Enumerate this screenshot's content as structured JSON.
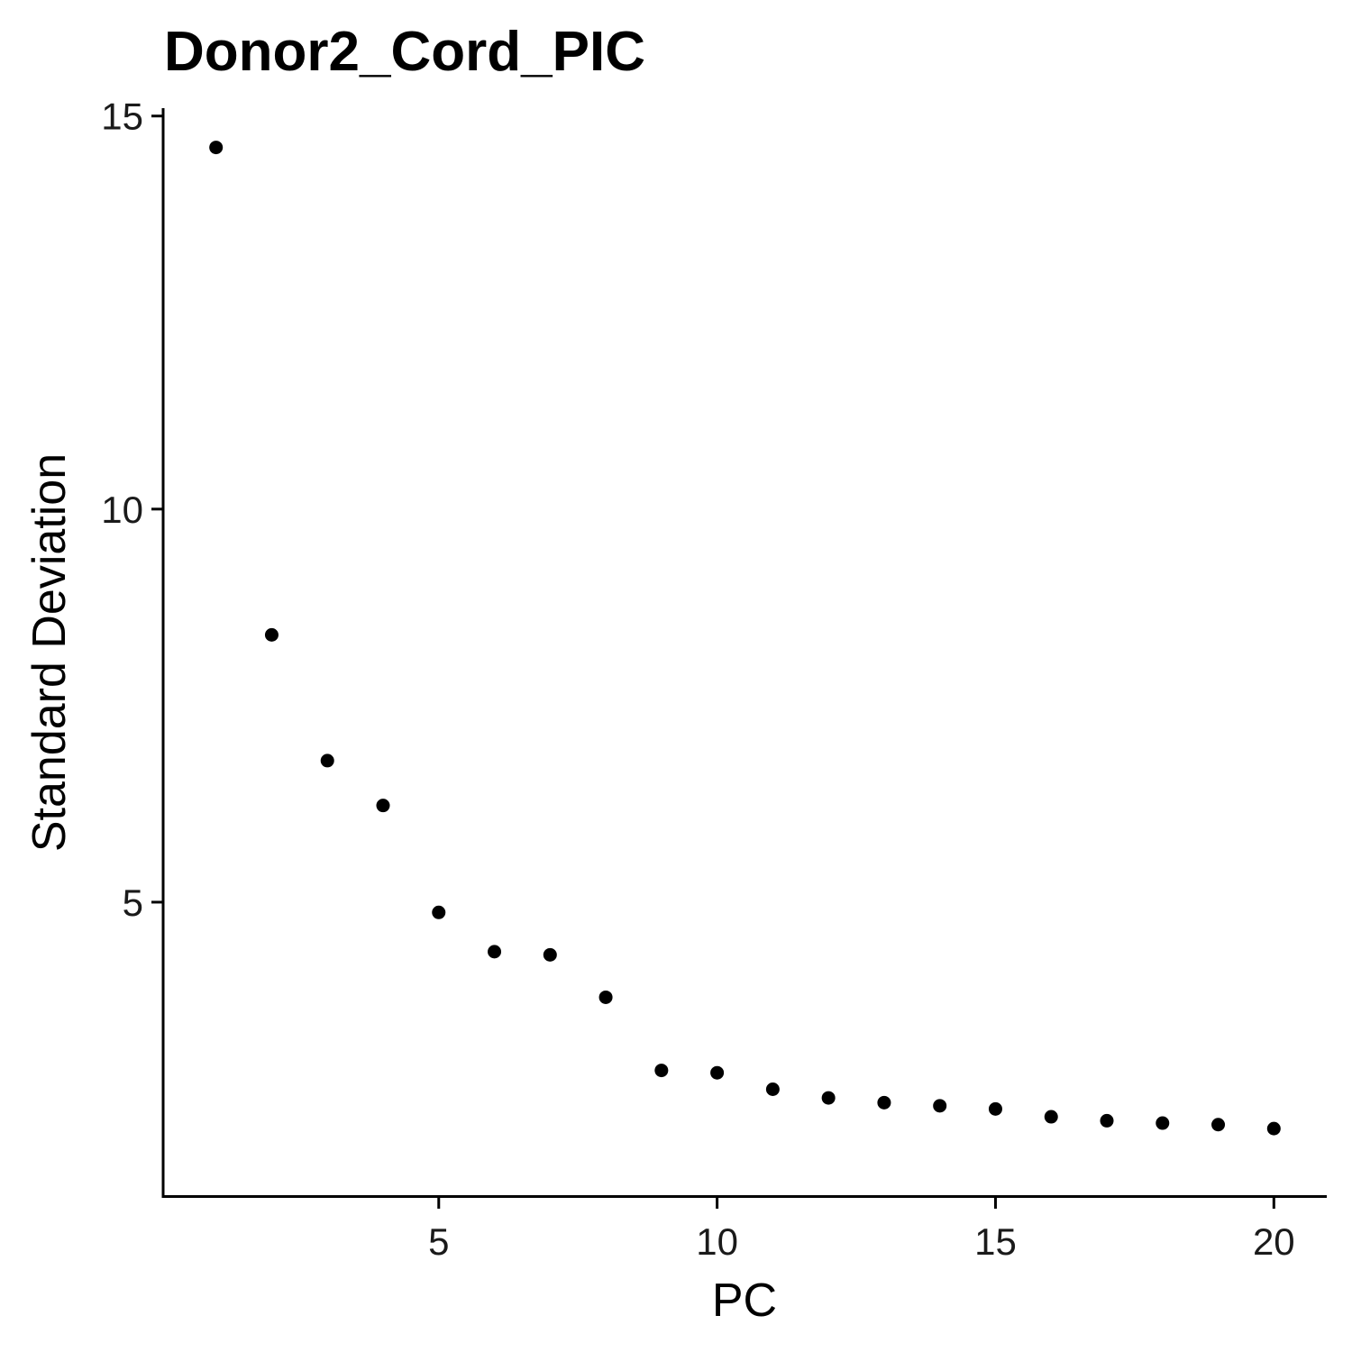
{
  "chart_data": {
    "type": "scatter",
    "title": "Donor2_Cord_PIC",
    "xlabel": "PC",
    "ylabel": "Standard Deviation",
    "x_ticks": [
      5,
      10,
      15,
      20
    ],
    "y_ticks": [
      5,
      10,
      15
    ],
    "xlim": [
      0.05,
      20.95
    ],
    "ylim": [
      1.25,
      15.1
    ],
    "grid": false,
    "legend": false,
    "point_color": "#000000",
    "x": [
      1,
      2,
      3,
      4,
      5,
      6,
      7,
      8,
      9,
      10,
      11,
      12,
      13,
      14,
      15,
      16,
      17,
      18,
      19,
      20
    ],
    "y": [
      14.6,
      8.4,
      6.8,
      6.23,
      4.87,
      4.37,
      4.33,
      3.79,
      2.86,
      2.83,
      2.62,
      2.51,
      2.45,
      2.41,
      2.37,
      2.27,
      2.22,
      2.19,
      2.17,
      2.12
    ]
  }
}
